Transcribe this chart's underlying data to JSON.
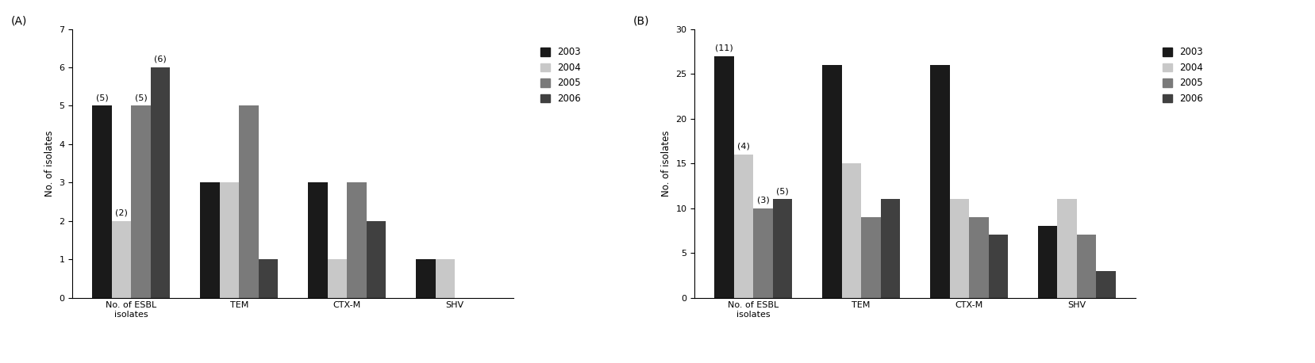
{
  "panel_A": {
    "label": "(A)",
    "categories": [
      "No. of ESBL\nisolates",
      "TEM",
      "CTX-M",
      "SHV"
    ],
    "ylabel": "No. of isolates",
    "ylim": [
      0,
      7
    ],
    "yticks": [
      0,
      1,
      2,
      3,
      4,
      5,
      6,
      7
    ],
    "series": {
      "2003": [
        5,
        3,
        3,
        1
      ],
      "2004": [
        2,
        3,
        1,
        1
      ],
      "2005": [
        5,
        5,
        3,
        0
      ],
      "2006": [
        6,
        1,
        2,
        0
      ]
    },
    "annotations": {
      "No. of ESBL\nisolates": {
        "2003": "(5)",
        "2004": "(2)",
        "2005": "(5)",
        "2006": "(6)"
      }
    }
  },
  "panel_B": {
    "label": "(B)",
    "categories": [
      "No. of ESBL\nisolates",
      "TEM",
      "CTX-M",
      "SHV"
    ],
    "ylabel": "No. of isolates",
    "ylim": [
      0,
      30
    ],
    "yticks": [
      0,
      5,
      10,
      15,
      20,
      25,
      30
    ],
    "series": {
      "2003": [
        27,
        26,
        26,
        8
      ],
      "2004": [
        16,
        15,
        11,
        11
      ],
      "2005": [
        10,
        9,
        9,
        7
      ],
      "2006": [
        11,
        11,
        7,
        3
      ]
    },
    "annotations": {
      "No. of ESBL\nisolates": {
        "2003": "(11)",
        "2004": "(4)",
        "2005": "(3)",
        "2006": "(5)"
      }
    }
  },
  "colors": {
    "2003": "#1a1a1a",
    "2004": "#c8c8c8",
    "2005": "#7a7a7a",
    "2006": "#404040"
  },
  "legend_years": [
    "2003",
    "2004",
    "2005",
    "2006"
  ],
  "bar_width": 0.18,
  "annotation_fontsize": 8,
  "axis_fontsize": 8.5,
  "tick_fontsize": 8,
  "legend_fontsize": 8.5
}
